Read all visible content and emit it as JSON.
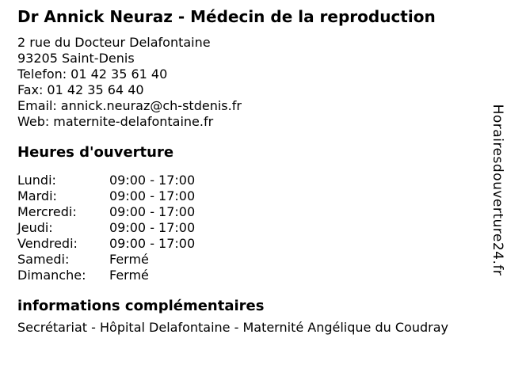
{
  "header": {
    "title": "Dr Annick Neuraz - Médecin de la reproduction"
  },
  "contact": {
    "address_line1": "2 rue du Docteur Delafontaine",
    "address_line2": "93205 Saint-Denis",
    "phone_label": "Telefon:",
    "phone_value": "01 42 35 61 40",
    "fax_label": "Fax:",
    "fax_value": "01 42 35 64 40",
    "email_label": "Email:",
    "email_value": "annick.neuraz@ch-stdenis.fr",
    "web_label": "Web:",
    "web_value": "maternite-delafontaine.fr"
  },
  "hours": {
    "heading": "Heures d'ouverture",
    "rows": [
      {
        "day": "Lundi:",
        "hours": "09:00 - 17:00"
      },
      {
        "day": "Mardi:",
        "hours": "09:00 - 17:00"
      },
      {
        "day": "Mercredi:",
        "hours": "09:00 - 17:00"
      },
      {
        "day": "Jeudi:",
        "hours": "09:00 - 17:00"
      },
      {
        "day": "Vendredi:",
        "hours": "09:00 - 17:00"
      },
      {
        "day": "Samedi:",
        "hours": "Fermé"
      },
      {
        "day": "Dimanche:",
        "hours": "Fermé"
      }
    ]
  },
  "info": {
    "heading": "informations complémentaires",
    "text": "Secrétariat - Hôpital Delafontaine - Maternité Angélique du Coudray"
  },
  "watermark": {
    "text": "Horairesdouverture24.fr"
  },
  "colors": {
    "background": "#ffffff",
    "text": "#000000"
  }
}
